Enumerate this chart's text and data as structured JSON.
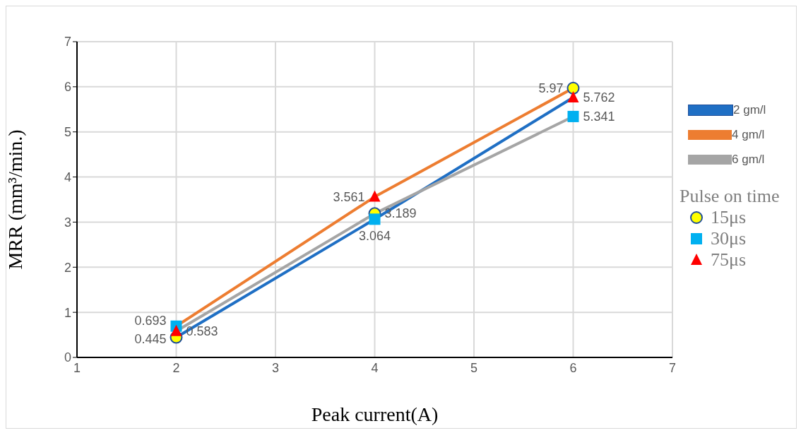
{
  "chart_data": {
    "type": "line",
    "xlabel": "Peak current(A)",
    "ylabel": "MRR (mm³/min.)",
    "legend_title": "Pulse on time",
    "xlim": [
      1,
      7
    ],
    "xticks": [
      1,
      2,
      3,
      4,
      5,
      6,
      7
    ],
    "ylim": [
      0,
      7
    ],
    "yticks": [
      0,
      1,
      2,
      3,
      4,
      5,
      6,
      7
    ],
    "grid": true,
    "legend": "right",
    "series": [
      {
        "name": "2 gm/l",
        "color": "#1f6fc4",
        "x": [
          2,
          4,
          6
        ],
        "values": [
          0.445,
          3.064,
          5.762
        ]
      },
      {
        "name": "4 gm/l",
        "color": "#ed7d31",
        "x": [
          2,
          4,
          6
        ],
        "values": [
          0.693,
          3.561,
          5.97
        ]
      },
      {
        "name": "6 gm/l",
        "color": "#a5a5a5",
        "x": [
          2,
          4,
          6
        ],
        "values": [
          0.583,
          3.189,
          5.341
        ]
      },
      {
        "name": "15μs",
        "type": "scatter",
        "color": "#ffff00",
        "x": [
          2,
          4,
          6
        ],
        "values": [
          0.445,
          3.189,
          5.97
        ],
        "value_labels": [
          "0.445",
          "3.189",
          "5.97"
        ],
        "marker": "circle"
      },
      {
        "name": "30μs",
        "type": "scatter",
        "color": "#00b0f0",
        "x": [
          2,
          4,
          6
        ],
        "values": [
          0.693,
          3.064,
          5.341
        ],
        "value_labels": [
          "0.693",
          "3.064",
          "5.341"
        ],
        "marker": "square"
      },
      {
        "name": "75μs",
        "type": "scatter",
        "color": "#ff0000",
        "x": [
          2,
          4,
          6
        ],
        "values": [
          0.583,
          3.561,
          5.762
        ],
        "value_labels": [
          "0.583",
          "3.561",
          "5.762"
        ],
        "marker": "triangle"
      }
    ]
  }
}
